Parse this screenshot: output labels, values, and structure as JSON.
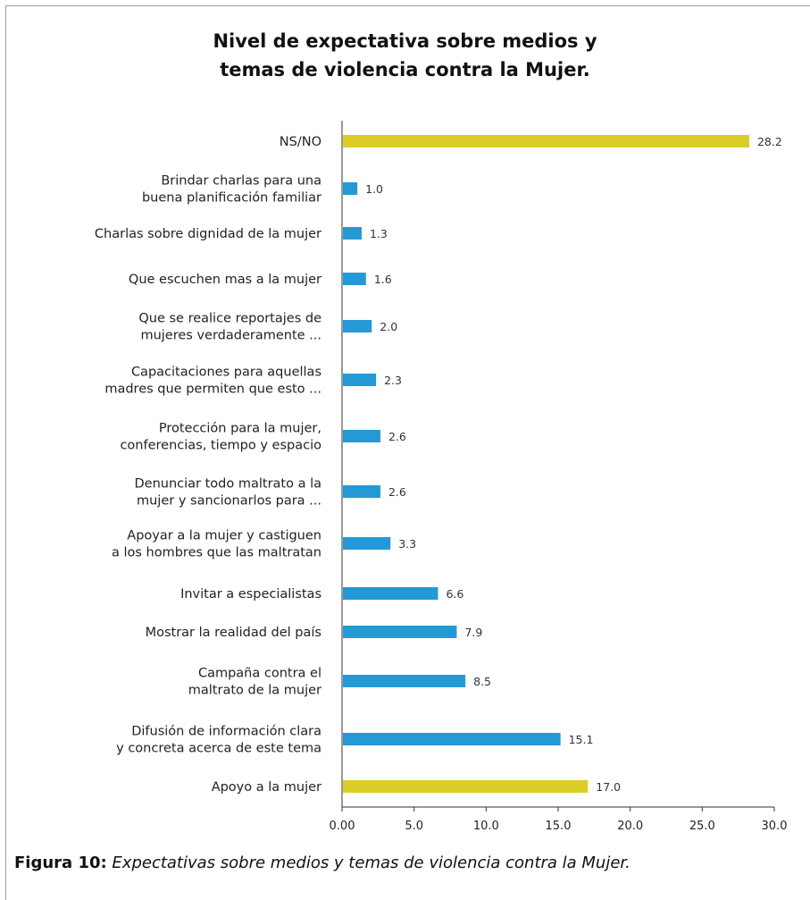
{
  "chart_data": {
    "type": "bar",
    "orientation": "horizontal",
    "title": "Nivel de expectativa sobre medios y\ntemas de violencia contra la Mujer.",
    "categories": [
      "NS/NO",
      "Brindar charlas para una\nbuena planificación familiar",
      "Charlas sobre dignidad de la mujer",
      "Que escuchen mas a la mujer",
      "Que se realice reportajes de\nmujeres verdaderamente ...",
      "Capacitaciones para aquellas\nmadres que permiten que esto ...",
      "Protección para la mujer,\nconferencias, tiempo y espacio",
      "Denunciar todo maltrato a la\nmujer y sancionarlos para ...",
      "Apoyar a la mujer y castiguen\na los hombres que las maltratan",
      "Invitar a especialistas",
      "Mostrar la realidad del país",
      "Campaña contra el\nmaltrato de la mujer",
      "Difusión de información clara\ny concreta acerca de este tema",
      "Apoyo a la mujer"
    ],
    "values": [
      28.2,
      1.0,
      1.3,
      1.6,
      2.0,
      2.3,
      2.6,
      2.6,
      3.3,
      6.6,
      7.9,
      8.5,
      15.1,
      17.0
    ],
    "value_labels": [
      "28.2",
      "1.0",
      "1.3",
      "1.6",
      "2.0",
      "2.3",
      "2.6",
      "2.6",
      "3.3",
      "6.6",
      "7.9",
      "8.5",
      "15.1",
      "17.0"
    ],
    "highlighted": [
      true,
      false,
      false,
      false,
      false,
      false,
      false,
      false,
      false,
      false,
      false,
      false,
      false,
      true
    ],
    "xlim": [
      0,
      30
    ],
    "xticks": [
      "0.00",
      "5.0",
      "10.0",
      "15.0",
      "20.0",
      "25.0",
      "30.0"
    ],
    "xtick_values": [
      0,
      5,
      10,
      15,
      20,
      25,
      30
    ],
    "xlabel": "",
    "ylabel": "",
    "grid": false,
    "legend": "none"
  },
  "colors": {
    "bar": "#2499d6",
    "highlight": "#dccd26",
    "axis": "#333333",
    "frame": "#9a9a9a"
  },
  "caption": {
    "label": "Figura 10:",
    "text": " Expectativas sobre medios y temas de violencia contra la Mujer."
  }
}
